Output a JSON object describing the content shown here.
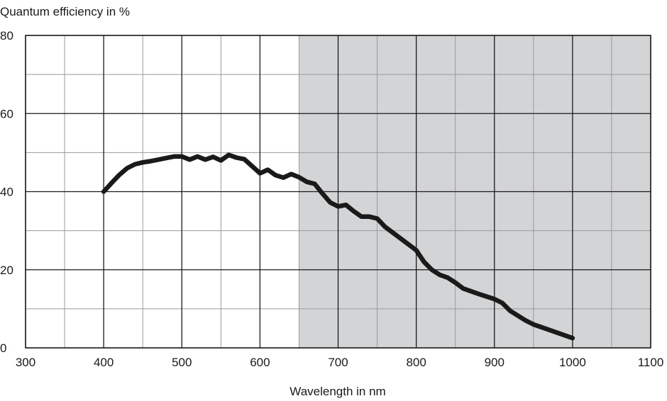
{
  "chart_data": {
    "type": "line",
    "title": "",
    "ylabel": "Quantum efficiency in %",
    "xlabel": "Wavelength in nm",
    "xlim": [
      300,
      1100
    ],
    "ylim": [
      0,
      80
    ],
    "x_ticks": [
      300,
      400,
      500,
      600,
      700,
      800,
      900,
      1000,
      1100
    ],
    "y_ticks": [
      0,
      20,
      40,
      60,
      80
    ],
    "x_minor_step": 50,
    "y_minor_step": 10,
    "grid": true,
    "shaded_region": {
      "x_from": 650,
      "x_to": 1100
    },
    "colors": {
      "line": "#1a1a1a",
      "shade": "#d3d4d6",
      "major_grid": "#1a1a1a",
      "minor_grid": "#9a9a9a"
    },
    "series": [
      {
        "x": [
          400,
          410,
          420,
          430,
          440,
          450,
          460,
          470,
          480,
          490,
          500,
          510,
          520,
          530,
          540,
          550,
          560,
          570,
          580,
          590,
          600,
          610,
          620,
          630,
          640,
          650,
          660,
          670,
          680,
          690,
          700,
          710,
          720,
          730,
          740,
          750,
          760,
          780,
          800,
          810,
          820,
          830,
          840,
          850,
          860,
          880,
          900,
          910,
          920,
          940,
          950,
          1000
        ],
        "y": [
          40,
          42.2,
          44.3,
          46,
          47,
          47.5,
          47.8,
          48.2,
          48.6,
          49,
          49,
          48.2,
          49,
          48.2,
          48.9,
          48,
          49.4,
          48.7,
          48.3,
          46.5,
          44.7,
          45.6,
          44.2,
          43.6,
          44.5,
          43.7,
          42.5,
          42,
          39.5,
          37.2,
          36.2,
          36.6,
          35,
          33.6,
          33.6,
          33.1,
          31,
          28,
          25,
          22,
          20,
          18.7,
          18,
          16.7,
          15.2,
          13.8,
          12.5,
          11.5,
          9.5,
          7,
          6,
          2.5
        ]
      }
    ]
  }
}
